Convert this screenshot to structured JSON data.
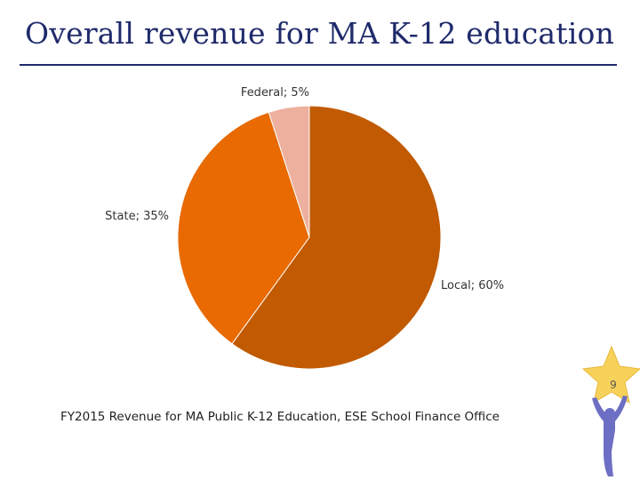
{
  "slide": {
    "title": "Overall revenue for MA K-12 education",
    "caption": "FY2015 Revenue for MA Public K-12 Education, ESE School Finance Office",
    "page_number": "9"
  },
  "chart_data": {
    "type": "pie",
    "title": "",
    "slices": [
      {
        "label": "Local",
        "value": 60,
        "display": "Local; 60%",
        "color": "#c15a00"
      },
      {
        "label": "State",
        "value": 35,
        "display": "State; 35%",
        "color": "#e86a00"
      },
      {
        "label": "Federal",
        "value": 5,
        "display": "Federal; 5%",
        "color": "#eeb09e"
      }
    ],
    "start_angle_deg": 0,
    "direction": "clockwise"
  },
  "colors": {
    "title": "#1f2a6b",
    "rule": "#1f2a6b",
    "star": "#f7d25a",
    "figure": "#6d6fc4"
  }
}
